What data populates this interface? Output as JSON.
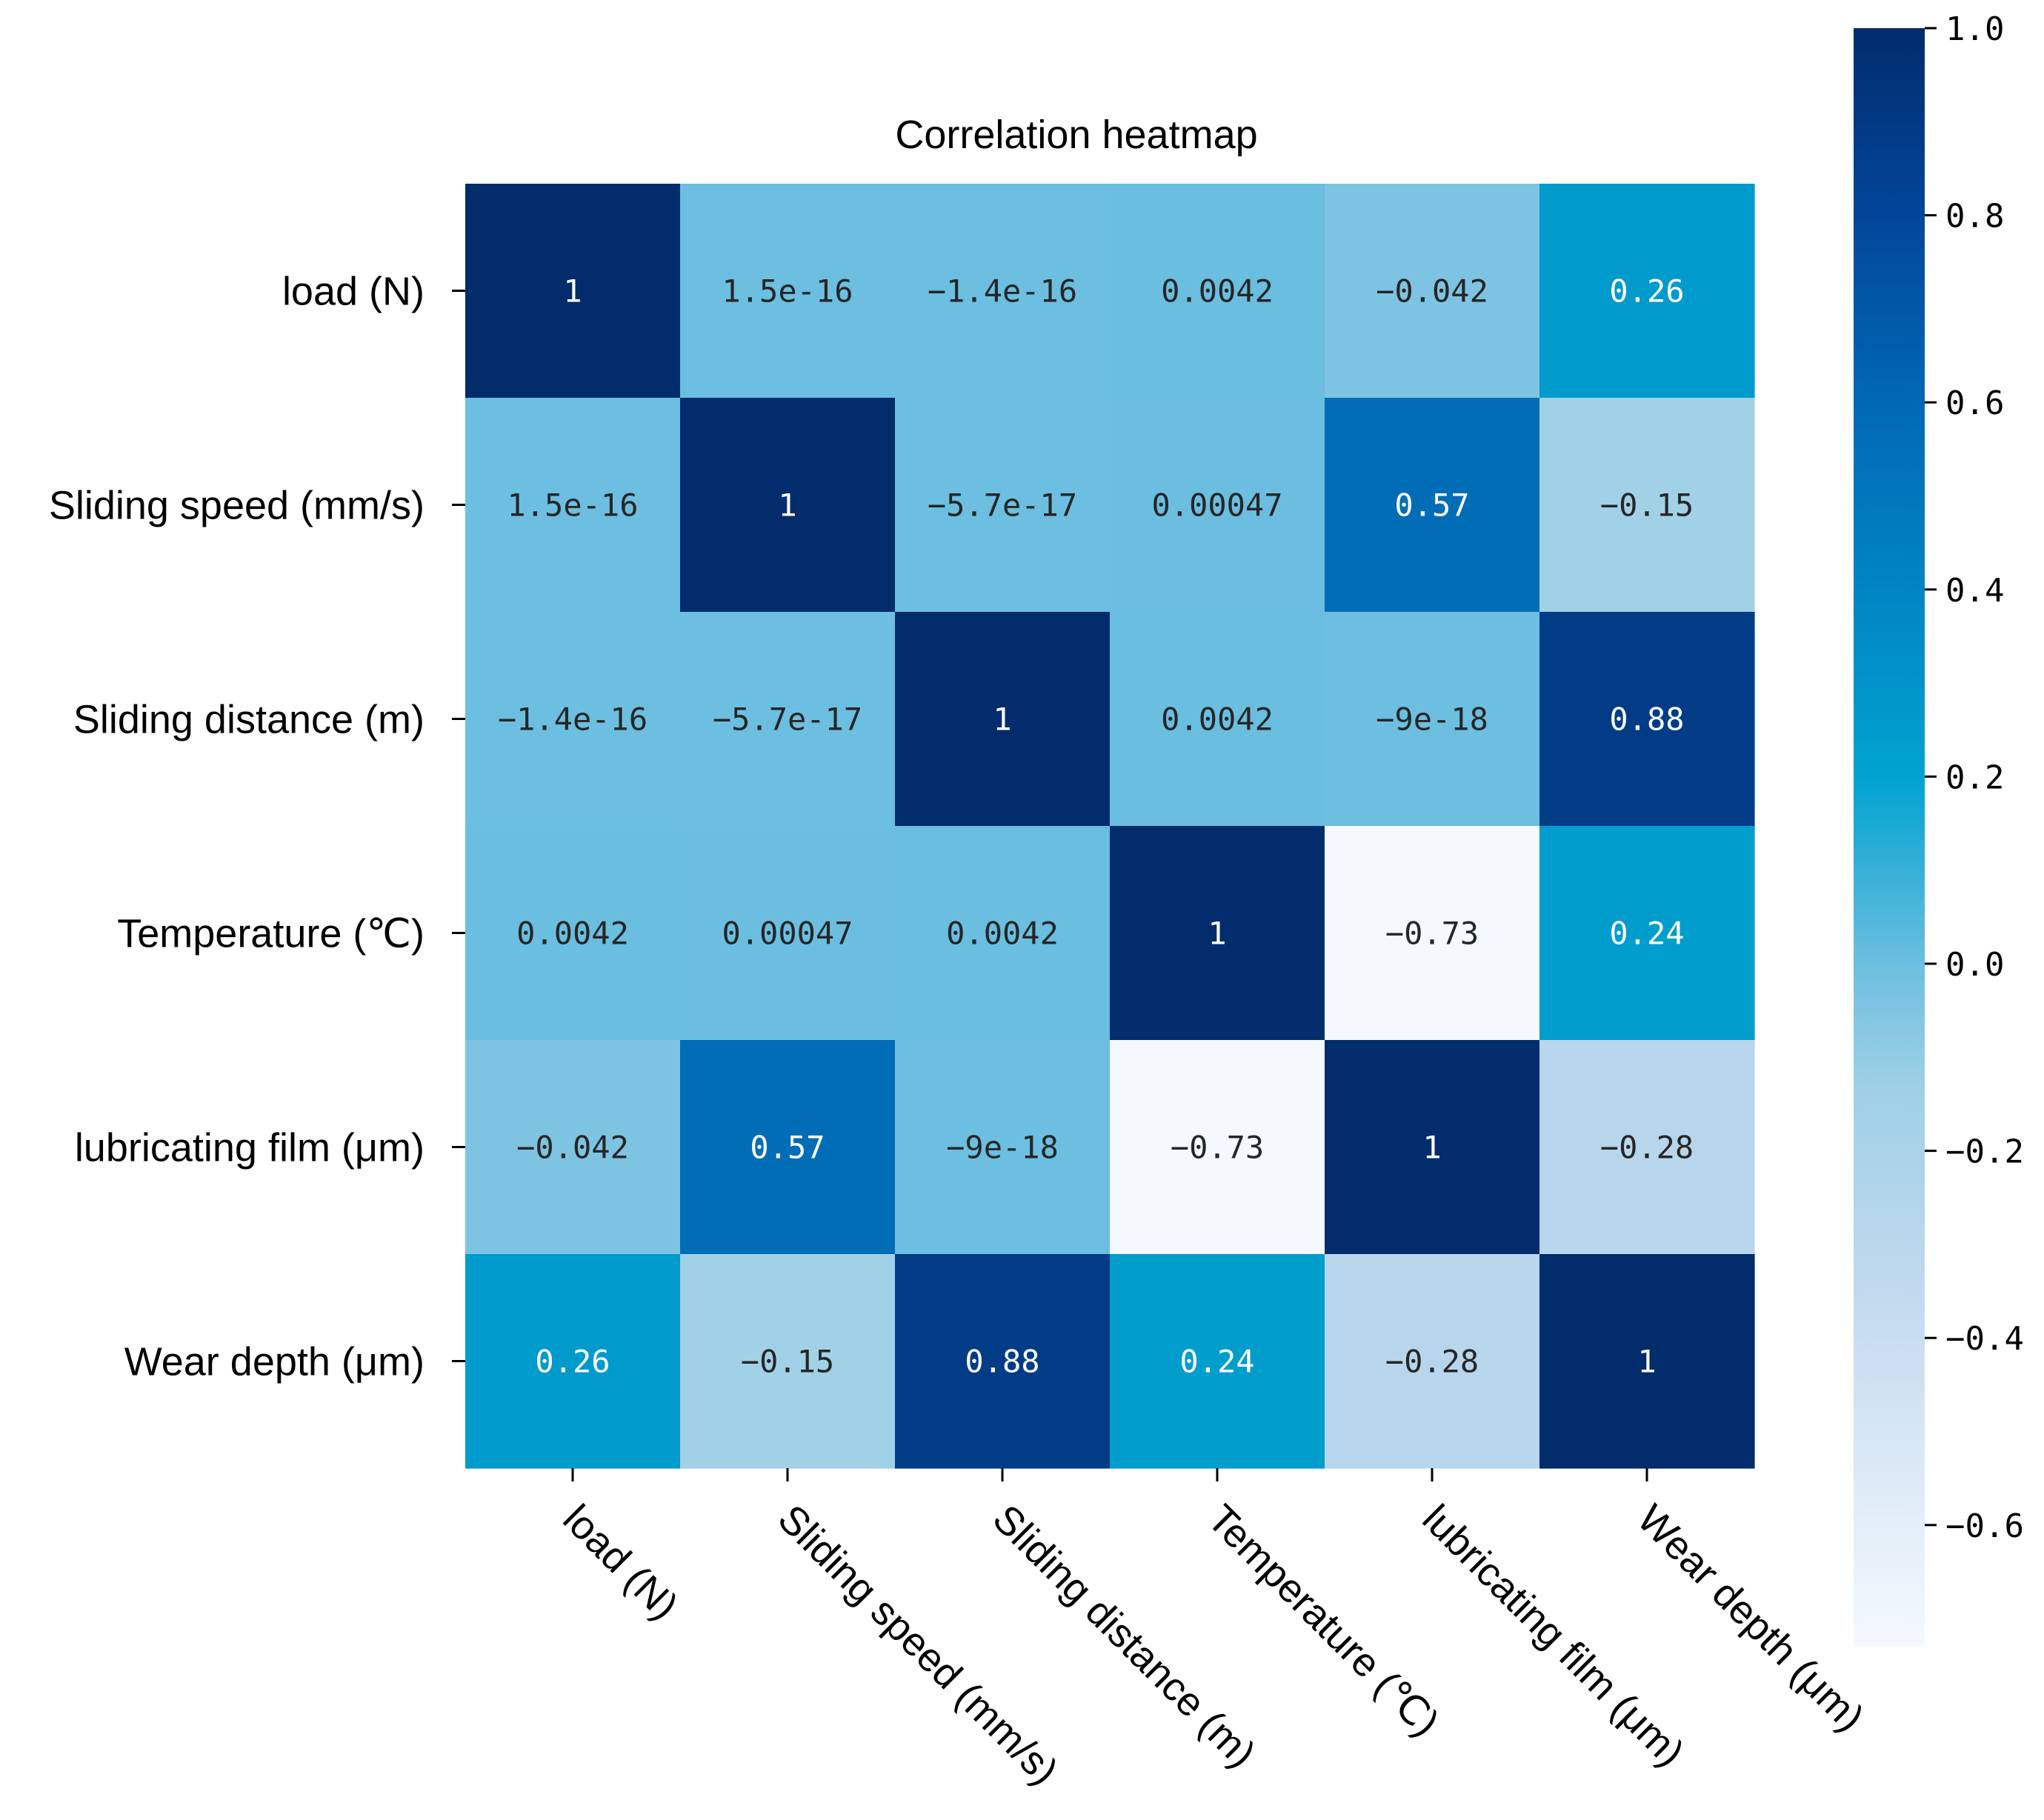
{
  "chart_data": {
    "type": "heatmap",
    "title": "Correlation heatmap",
    "row_labels": [
      "load (N)",
      "Sliding speed (mm/s)",
      "Sliding distance (m)",
      "Temperature (℃)",
      "lubricating film (μm)",
      "Wear depth (μm)"
    ],
    "col_labels": [
      "load (N)",
      "Sliding speed (mm/s)",
      "Sliding distance (m)",
      "Temperature (℃)",
      "lubricating film (μm)",
      "Wear depth (μm)"
    ],
    "values": [
      [
        1,
        1.5e-16,
        -1.4e-16,
        0.0042,
        -0.042,
        0.26
      ],
      [
        1.5e-16,
        1,
        -5.7e-17,
        0.00047,
        0.57,
        -0.15
      ],
      [
        -1.4e-16,
        -5.7e-17,
        1,
        0.0042,
        -9e-18,
        0.88
      ],
      [
        0.0042,
        0.00047,
        0.0042,
        1,
        -0.73,
        0.24
      ],
      [
        -0.042,
        0.57,
        -9e-18,
        -0.73,
        1,
        -0.28
      ],
      [
        0.26,
        -0.15,
        0.88,
        0.24,
        -0.28,
        1
      ]
    ],
    "annotations": [
      [
        "1",
        "1.5e-16",
        "−1.4e-16",
        "0.0042",
        "−0.042",
        "0.26"
      ],
      [
        "1.5e-16",
        "1",
        "−5.7e-17",
        "0.00047",
        "0.57",
        "−0.15"
      ],
      [
        "−1.4e-16",
        "−5.7e-17",
        "1",
        "0.0042",
        "−9e-18",
        "0.88"
      ],
      [
        "0.0042",
        "0.00047",
        "0.0042",
        "1",
        "−0.73",
        "0.24"
      ],
      [
        "−0.042",
        "0.57",
        "−9e-18",
        "−0.73",
        "1",
        "−0.28"
      ],
      [
        "0.26",
        "−0.15",
        "0.88",
        "0.24",
        "−0.28",
        "1"
      ]
    ],
    "colormap": "Blues",
    "vmin": -0.73,
    "vmax": 1.0,
    "colorbar": {
      "ticks": [
        1.0,
        0.8,
        0.6,
        0.4,
        0.2,
        0.0,
        -0.2,
        -0.4,
        -0.6
      ],
      "tick_labels": [
        "1.0",
        "0.8",
        "0.6",
        "0.4",
        "0.2",
        "0.0",
        "−0.2",
        "−0.4",
        "−0.6"
      ]
    }
  }
}
